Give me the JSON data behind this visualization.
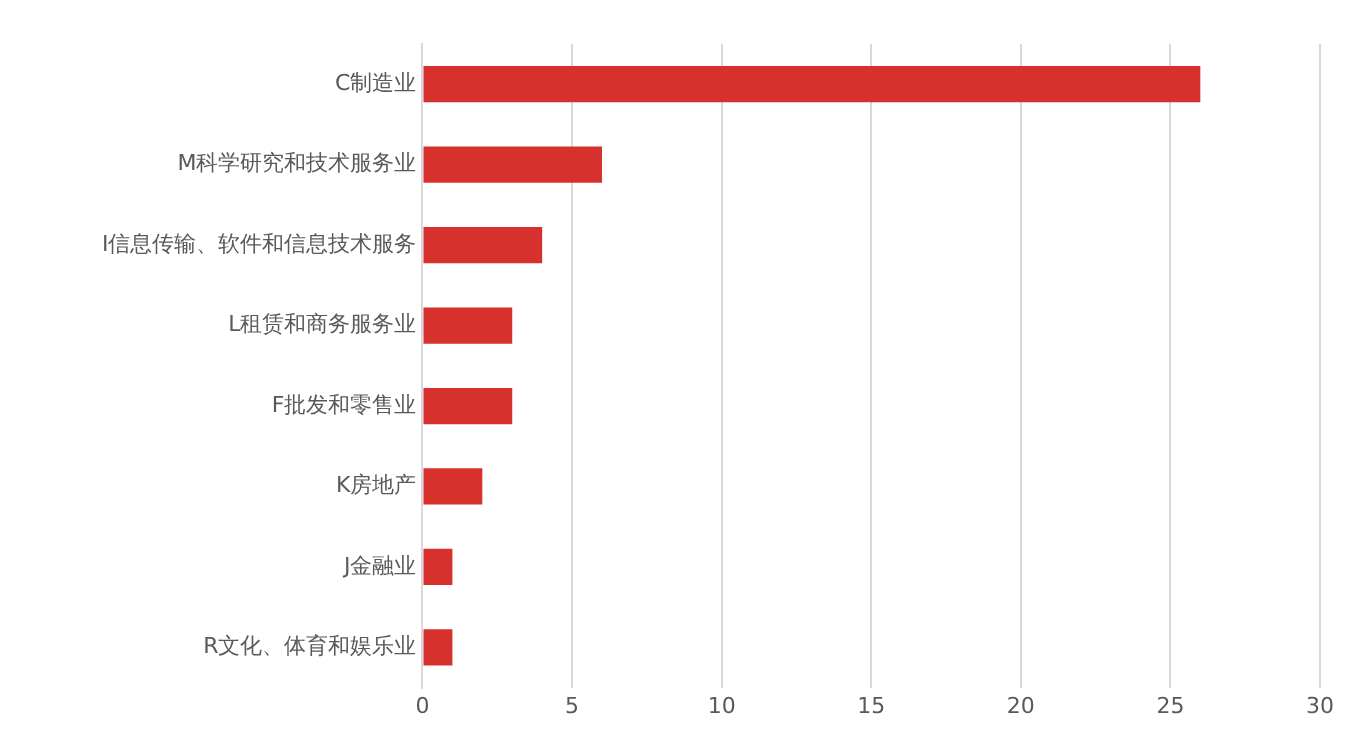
{
  "chart_data": {
    "type": "bar",
    "orientation": "horizontal",
    "categories": [
      "C制造业",
      "M科学研究和技术服务业",
      "I信息传输、软件和信息技术服务",
      "L租赁和商务服务业",
      "F批发和零售业",
      "K房地产",
      "J金融业",
      "R文化、体育和娱乐业"
    ],
    "values": [
      26,
      6,
      4,
      3,
      3,
      2,
      1,
      1
    ],
    "color": "#d7312e",
    "xlim": [
      0,
      30
    ],
    "xticks": [
      0,
      5,
      10,
      15,
      20,
      25,
      30
    ],
    "grid": "x",
    "legend": false
  }
}
